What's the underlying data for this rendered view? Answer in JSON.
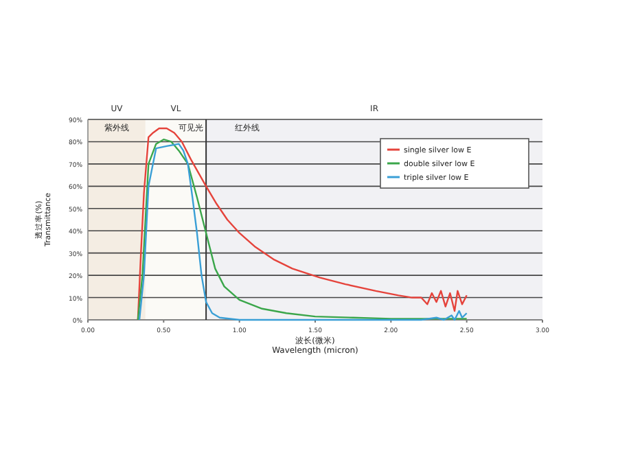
{
  "chart_data": {
    "type": "line",
    "xlabel": "波长(微米)\nWavelength  (micron)",
    "ylabel": "透过率(%)\nTransmittance",
    "xlim": [
      0,
      3
    ],
    "xticks": [
      {
        "value": 0,
        "label": "0.00"
      },
      {
        "value": 0.5,
        "label": "0.50"
      },
      {
        "value": 1,
        "label": "1.00"
      },
      {
        "value": 1.5,
        "label": "1.50"
      },
      {
        "value": 2,
        "label": "2.00"
      },
      {
        "value": 2.5,
        "label": "2.50"
      },
      {
        "value": 3,
        "label": "3.00"
      }
    ],
    "ylim": [
      0,
      90
    ],
    "yticks": [
      {
        "value": 0,
        "label": "0%"
      },
      {
        "value": 10,
        "label": "10%"
      },
      {
        "value": 20,
        "label": "20%"
      },
      {
        "value": 30,
        "label": "30%"
      },
      {
        "value": 40,
        "label": "40%"
      },
      {
        "value": 50,
        "label": "50%"
      },
      {
        "value": 60,
        "label": "60%"
      },
      {
        "value": 70,
        "label": "70%"
      },
      {
        "value": 80,
        "label": "80%"
      },
      {
        "value": 90,
        "label": "90%"
      }
    ],
    "grid": "y",
    "legend": "top right",
    "marker": "none",
    "line_style": "solid",
    "bands": [
      {
        "axis": "x",
        "from": 0,
        "to": 0.38,
        "label": "UV",
        "color": "#f4ede3"
      },
      {
        "axis": "x",
        "from": 0.38,
        "to": 0.78,
        "label": "VL",
        "color": "#fbfaf6"
      },
      {
        "axis": "x",
        "from": 0.78,
        "to": 3,
        "label": "IR",
        "color": "#f1f1f4"
      }
    ],
    "ref_lines": [
      {
        "axis": "x",
        "value": 0.78,
        "color": "#333333"
      }
    ],
    "annotations": [
      "紫外线",
      "可见光",
      "红外线"
    ],
    "series": [
      {
        "name": "single silver low E",
        "color": "#e5433b",
        "x": [
          0.33,
          0.35,
          0.37,
          0.4,
          0.43,
          0.47,
          0.52,
          0.57,
          0.62,
          0.68,
          0.73,
          0.78,
          0.85,
          0.92,
          1.0,
          1.1,
          1.23,
          1.35,
          1.53,
          1.7,
          1.9,
          2.05,
          2.14,
          2.2,
          2.24,
          2.27,
          2.3,
          2.33,
          2.36,
          2.39,
          2.42,
          2.44,
          2.47,
          2.5
        ],
        "values": [
          0,
          30,
          57,
          82,
          84,
          86,
          86,
          84,
          80,
          72,
          66,
          60,
          52,
          45,
          39,
          33,
          27,
          23,
          19,
          16,
          13,
          11,
          10,
          10,
          7,
          12,
          8,
          13,
          6,
          12,
          4,
          13,
          7,
          11
        ]
      },
      {
        "name": "double silver low E",
        "color": "#3aa64a",
        "x": [
          0.33,
          0.36,
          0.4,
          0.45,
          0.5,
          0.55,
          0.6,
          0.66,
          0.72,
          0.78,
          0.84,
          0.9,
          1.0,
          1.15,
          1.31,
          1.5,
          1.75,
          2.0,
          2.25,
          2.5
        ],
        "values": [
          0,
          20,
          70,
          79,
          81,
          80,
          76,
          70,
          55,
          39,
          23,
          15,
          9,
          5,
          3,
          1.5,
          1,
          0.5,
          0.5,
          0.5
        ]
      },
      {
        "name": "triple silver low E",
        "color": "#3a9fd6",
        "x": [
          0.34,
          0.37,
          0.4,
          0.45,
          0.52,
          0.6,
          0.63,
          0.66,
          0.69,
          0.72,
          0.75,
          0.78,
          0.82,
          0.87,
          1.0,
          1.5,
          2.0,
          2.2,
          2.3,
          2.35,
          2.4,
          2.42,
          2.45,
          2.47,
          2.5
        ],
        "values": [
          0,
          20,
          60,
          77,
          78,
          79,
          76,
          70,
          55,
          39,
          20,
          8,
          3,
          1,
          0,
          0,
          0,
          0,
          1,
          0,
          2,
          0,
          4,
          1,
          3
        ]
      }
    ]
  }
}
